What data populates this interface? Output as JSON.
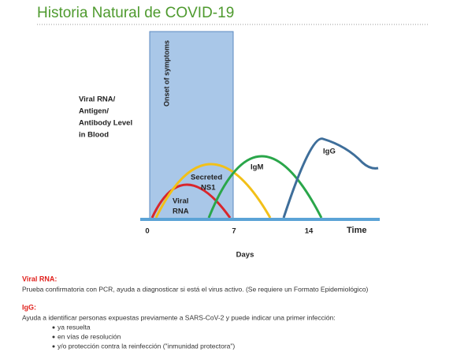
{
  "header": {
    "title": "Historia Natural de COVID-19"
  },
  "diagram": {
    "y_axis_label": [
      "Viral RNA/",
      "Antigen/",
      "Antibody Level",
      "in Blood"
    ],
    "onset_label": "Onset of symptoms",
    "x_ticks": [
      "0",
      "7",
      "14"
    ],
    "x_axis_end_label": "Time",
    "x_axis_title": "Days",
    "curve_labels": {
      "viral_rna": [
        "Viral",
        "RNA"
      ],
      "ns1": [
        "Secreted",
        "NS1"
      ],
      "igm": "IgM",
      "igg": "IgG"
    }
  },
  "notes": [
    {
      "heading": "Viral RNA:",
      "text": "Prueba confirmatoria con PCR, ayuda a diagnosticar si está el virus activo.  (Se requiere un Formato Epidemiológico)"
    },
    {
      "heading": "IgG:",
      "text": "Ayuda a identificar personas expuestas previamente a SARS-CoV-2 y  puede indicar una primer infección:",
      "bullets": [
        "ya resuelta",
        "en vías de resolución",
        "y/o protección contra la reinfección (\"inmunidad protectora\")"
      ]
    }
  ]
}
